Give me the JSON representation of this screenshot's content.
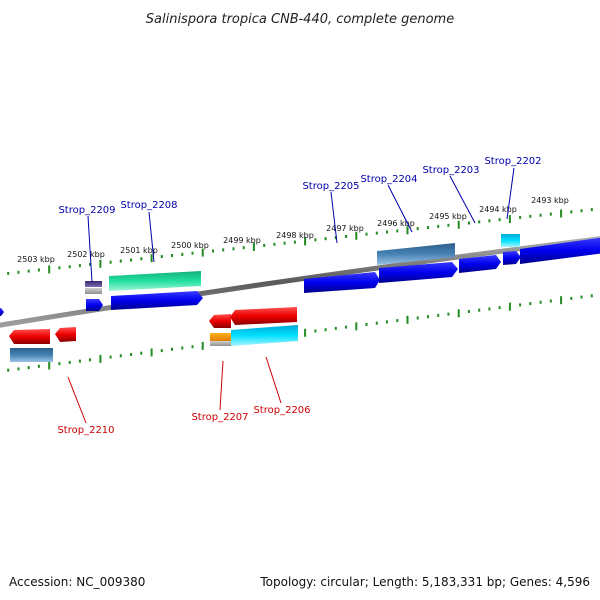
{
  "title": "Salinispora tropica CNB-440, complete genome",
  "footer": {
    "accession": "Accession: NC_009380",
    "topology": "Topology: circular; Length: 5,183,331 bp; Genes: 4,596"
  },
  "scale": {
    "ticks": [
      "2503 kbp",
      "2502 kbp",
      "2501 kbp",
      "2500 kbp",
      "2499 kbp",
      "2498 kbp",
      "2497 kbp",
      "2496 kbp",
      "2495 kbp",
      "2494 kbp",
      "2493 kbp"
    ]
  },
  "genes_top": [
    "Strop_2209",
    "Strop_2208",
    "Strop_2205",
    "Strop_2204",
    "Strop_2203",
    "Strop_2202"
  ],
  "genes_bottom": [
    "Strop_2210",
    "Strop_2207",
    "Strop_2206"
  ],
  "colors": {
    "forward_strand": "#0000ee",
    "reverse_strand": "#ee0000",
    "top_label": "#0000aa",
    "bottom_label": "#cc0000",
    "track_dots": "#228b22",
    "backbone": "#808080",
    "feature_steel": "#4682b4",
    "feature_green": "#22e0a0",
    "feature_cyan": "#00e0ff",
    "feature_orange": "#ffa000",
    "feature_purple": "#554488"
  }
}
